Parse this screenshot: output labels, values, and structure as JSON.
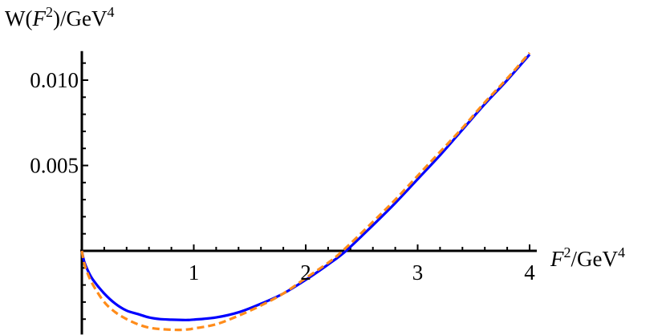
{
  "chart_data": {
    "type": "line",
    "title": "",
    "xlabel": "F²/GeV⁴",
    "ylabel": "W(F²)/GeV⁴",
    "xlabel_parts": {
      "var": "F",
      "sup": "2",
      "unit": "/GeV",
      "unit_sup": "4"
    },
    "ylabel_parts": {
      "pre": "W(",
      "var": "F",
      "sup": "2",
      "post": ")/GeV",
      "unit_sup": "4"
    },
    "xlim": [
      0,
      4.05
    ],
    "ylim": [
      -0.0049,
      0.0117
    ],
    "x_ticks": [
      1,
      2,
      3,
      4
    ],
    "x_tick_labels": [
      "1",
      "2",
      "3",
      "4"
    ],
    "y_ticks": [
      0.005,
      0.01
    ],
    "y_tick_labels": [
      "0.005",
      "0.010"
    ],
    "grid": false,
    "legend": "none",
    "series": [
      {
        "color": "#0000ff",
        "style": "solid",
        "x": [
          0,
          0.02,
          0.05,
          0.1,
          0.2,
          0.3,
          0.4,
          0.5,
          0.6,
          0.7,
          0.8,
          0.9,
          0.95,
          1.0,
          1.2,
          1.4,
          1.6,
          1.8,
          2.0,
          2.2,
          2.36,
          2.6,
          2.8,
          3.0,
          3.2,
          3.4,
          3.6,
          3.8,
          4.0
        ],
        "y": [
          0,
          -0.0006,
          -0.0011,
          -0.0017,
          -0.0025,
          -0.0031,
          -0.0035,
          -0.0037,
          -0.0039,
          -0.004,
          -0.00403,
          -0.00405,
          -0.00405,
          -0.00403,
          -0.0039,
          -0.0036,
          -0.0031,
          -0.0025,
          -0.0017,
          -0.0008,
          0,
          0.0015,
          0.0028,
          0.0042,
          0.0056,
          0.0071,
          0.0086,
          0.01,
          0.0115
        ]
      },
      {
        "color": "#ff8c1a",
        "style": "dashed",
        "x": [
          0,
          0.02,
          0.05,
          0.1,
          0.2,
          0.3,
          0.4,
          0.5,
          0.6,
          0.7,
          0.8,
          0.87,
          0.95,
          1.0,
          1.2,
          1.4,
          1.6,
          1.8,
          2.0,
          2.2,
          2.33,
          2.6,
          2.8,
          3.0,
          3.2,
          3.4,
          3.6,
          3.8,
          4.0
        ],
        "y": [
          0,
          -0.0007,
          -0.0013,
          -0.002,
          -0.003,
          -0.0036,
          -0.004,
          -0.0043,
          -0.0045,
          -0.00458,
          -0.00462,
          -0.00463,
          -0.0046,
          -0.00455,
          -0.0043,
          -0.0038,
          -0.0032,
          -0.0025,
          -0.0016,
          -0.0007,
          0,
          0.0017,
          0.003,
          0.0044,
          0.0058,
          0.0072,
          0.0087,
          0.0101,
          0.0116
        ]
      }
    ]
  }
}
